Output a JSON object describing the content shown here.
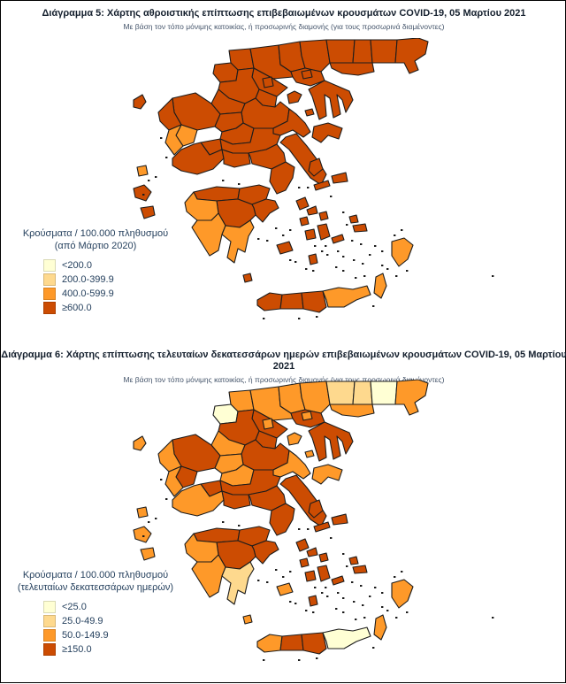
{
  "palette": {
    "colors": [
      "#FFFFD4",
      "#FED98E",
      "#FE9929",
      "#CC4C02"
    ],
    "border": "#1c1c1c"
  },
  "figure": {
    "panels": [
      {
        "id": "map-cumulative",
        "title": "Διάγραμμα 5: Χάρτης αθροιστικής επίπτωσης επιβεβαιωμένων κρουσμάτων COVID-19, 05 Μαρτίου 2021",
        "subtitle": "Με βάση τον τόπο μόνιμης κατοικίας, ή προσωρινής διαμονής (για τους προσωρινά διαμένοντες)",
        "legend": {
          "title_line1": "Κρούσματα / 100.000 πληθυσμού",
          "title_line2": "(από Μάρτιο 2020)",
          "items": [
            {
              "label": "<200.0",
              "color": "#FFFFD4"
            },
            {
              "label": "200.0-399.9",
              "color": "#FED98E"
            },
            {
              "label": "400.0-599.9",
              "color": "#FE9929"
            },
            {
              "label": "≥600.0",
              "color": "#CC4C02"
            }
          ]
        },
        "region_categories": {
          "florina": 3,
          "kastoria": 3,
          "pella": 3,
          "kilkis": 3,
          "serres": 3,
          "drama": 3,
          "xanthi": 3,
          "rodopi": 3,
          "evros": 3,
          "kavala": 3,
          "thessaloniki": 3,
          "imathia": 3,
          "pieria": 3,
          "kozani": 3,
          "grevena": 3,
          "ioannina": 3,
          "thesprotia": 3,
          "arta": 2,
          "preveza": 2,
          "chalkidiki": 3,
          "larissa": 3,
          "trikala": 3,
          "karditsa": 3,
          "magnesia": 3,
          "sporades": 3,
          "evrytania": 3,
          "fthiotida": 3,
          "aetolia": 3,
          "fokida": 3,
          "voiotia": 3,
          "attiki": 3,
          "evia": 3,
          "achaia": 3,
          "korinthia": 3,
          "argolida": 3,
          "arcadia": 3,
          "ilia": 2,
          "messinia": 2,
          "lakonia": 2,
          "kythira": 3,
          "corfu": 3,
          "lefkada": 2,
          "kefalonia": 3,
          "zakynthos": 3,
          "chania": 3,
          "rethymno": 3,
          "heraklion": 3,
          "lasithi": 2,
          "thasos": 3,
          "samothraki": 3,
          "limnos": 3,
          "lesvos": 3,
          "chios": 3,
          "samos": 3,
          "ikaria": 3,
          "andros": 3,
          "tinos": 3,
          "mykonos": 3,
          "syros": 3,
          "paros": 3,
          "naxos": 3,
          "milos": 3,
          "santorini": 3,
          "amorgos": 3,
          "kos": 3,
          "kalymnos": 3,
          "rhodes": 2,
          "karpathos": 2
        }
      },
      {
        "id": "map-14day",
        "title": "Διάγραμμα 6: Χάρτης επίπτωσης τελευταίων δεκατεσσάρων ημερών επιβεβαιωμένων κρουσμάτων COVID-19, 05 Μαρτίου 2021",
        "subtitle": "Με βάση τον τόπο μόνιμης κατοικίας, ή προσωρινής διαμονής (για τους προσωρινά διαμένοντες)",
        "legend": {
          "title_line1": "Κρούσματα / 100.000 πληθυσμού",
          "title_line2": "(τελευταίων δεκατεσσάρων ημερών)",
          "items": [
            {
              "label": "<25.0",
              "color": "#FFFFD4"
            },
            {
              "label": "25.0-49.9",
              "color": "#FED98E"
            },
            {
              "label": "50.0-149.9",
              "color": "#FE9929"
            },
            {
              "label": "≥150.0",
              "color": "#CC4C02"
            }
          ]
        },
        "region_categories": {
          "florina": 2,
          "kastoria": 0,
          "pella": 2,
          "kilkis": 2,
          "serres": 2,
          "drama": 1,
          "xanthi": 1,
          "rodopi": 0,
          "evros": 2,
          "kavala": 2,
          "thessaloniki": 3,
          "imathia": 3,
          "pieria": 3,
          "kozani": 3,
          "grevena": 2,
          "ioannina": 3,
          "thesprotia": 2,
          "arta": 3,
          "preveza": 2,
          "chalkidiki": 3,
          "larissa": 3,
          "trikala": 2,
          "karditsa": 2,
          "magnesia": 2,
          "sporades": 2,
          "evrytania": 3,
          "fthiotida": 3,
          "aetolia": 2,
          "fokida": 3,
          "voiotia": 3,
          "attiki": 3,
          "evia": 3,
          "achaia": 3,
          "korinthia": 3,
          "argolida": 3,
          "arcadia": 3,
          "ilia": 2,
          "messinia": 2,
          "lakonia": 1,
          "kythira": 2,
          "corfu": 2,
          "lefkada": 2,
          "kefalonia": 2,
          "zakynthos": 2,
          "chania": 2,
          "rethymno": 3,
          "heraklion": 3,
          "lasithi": 0,
          "thasos": 2,
          "samothraki": 2,
          "limnos": 2,
          "lesvos": 2,
          "chios": 3,
          "samos": 3,
          "ikaria": 3,
          "andros": 3,
          "tinos": 3,
          "mykonos": 3,
          "syros": 3,
          "paros": 3,
          "naxos": 3,
          "milos": 2,
          "santorini": 3,
          "amorgos": 3,
          "kos": 3,
          "kalymnos": 3,
          "rhodes": 2,
          "karpathos": 2
        }
      }
    ]
  }
}
